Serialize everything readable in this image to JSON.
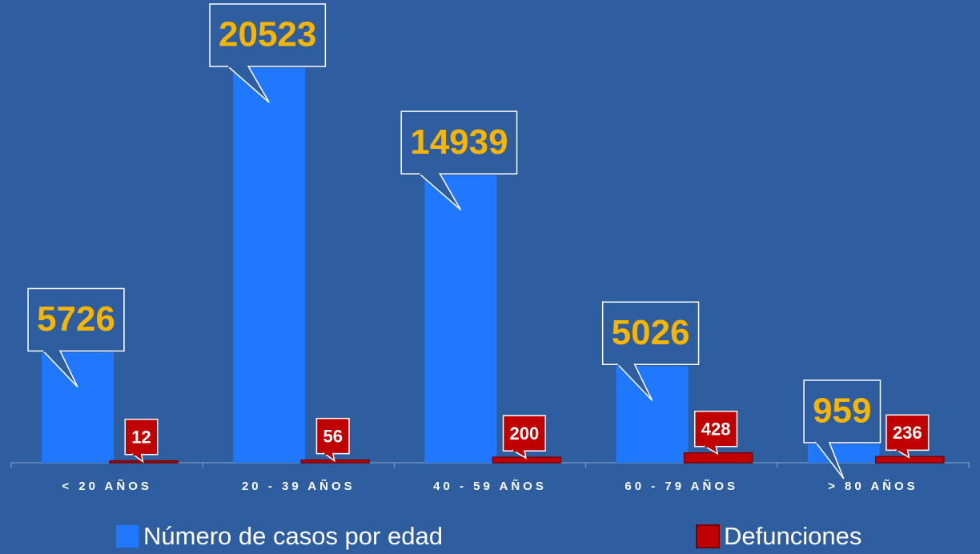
{
  "chart_data": {
    "type": "bar",
    "categories": [
      "< 20 AÑOS",
      "20 - 39 AÑOS",
      "40 - 59 AÑOS",
      "60 - 79 AÑOS",
      "> 80 AÑOS"
    ],
    "series": [
      {
        "name": "Número de casos por edad",
        "color": "#1f78ff",
        "values": [
          5726,
          20523,
          14939,
          5026,
          959
        ]
      },
      {
        "name": "Defunciones",
        "color": "#c00000",
        "values": [
          12,
          56,
          200,
          428,
          236
        ]
      }
    ],
    "legend": "bottom"
  }
}
